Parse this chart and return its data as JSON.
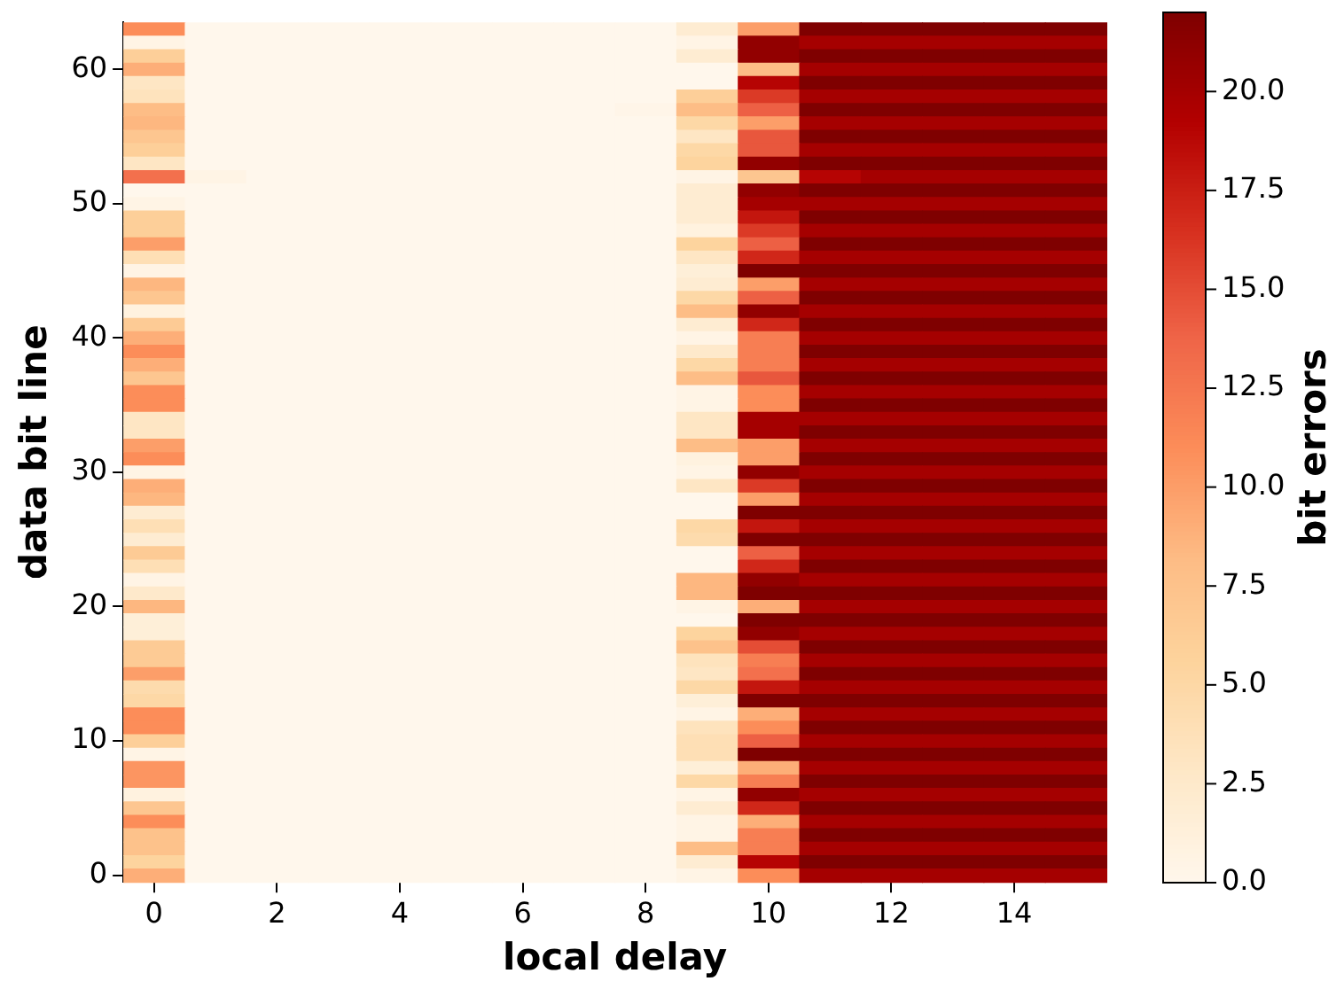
{
  "chart_data": {
    "type": "heatmap",
    "xlabel": "local delay",
    "ylabel": "data bit line",
    "clabel": "bit errors",
    "categories": [
      "0",
      null,
      "2",
      null,
      "4",
      null,
      "6",
      null,
      "8",
      null,
      "10",
      null,
      "12",
      null,
      "14",
      null
    ],
    "y_categories": [
      null,
      null,
      null,
      "60",
      null,
      null,
      null,
      null,
      null,
      null,
      null,
      null,
      null,
      "50",
      null,
      null,
      null,
      null,
      null,
      null,
      null,
      null,
      null,
      "40",
      null,
      null,
      null,
      null,
      null,
      null,
      null,
      null,
      null,
      "30",
      null,
      null,
      null,
      null,
      null,
      null,
      null,
      null,
      null,
      "20",
      null,
      null,
      null,
      null,
      null,
      null,
      null,
      null,
      null,
      "10",
      null,
      null,
      null,
      null,
      null,
      null,
      null,
      null,
      null,
      "0"
    ],
    "clim": [
      0,
      22
    ],
    "cticks": [
      {
        "value": 0,
        "label": "0.0"
      },
      {
        "value": 2.5,
        "label": "2.5"
      },
      {
        "value": 5,
        "label": "5.0"
      },
      {
        "value": 7.5,
        "label": "7.5"
      },
      {
        "value": 10,
        "label": "10.0"
      },
      {
        "value": 12.5,
        "label": "12.5"
      },
      {
        "value": 15,
        "label": "15.0"
      },
      {
        "value": 17.5,
        "label": "17.5"
      },
      {
        "value": 20,
        "label": "20.0"
      }
    ],
    "cells": [
      [
        11,
        0,
        0,
        0,
        0,
        0,
        0,
        0,
        0,
        2,
        10,
        22,
        22,
        22,
        22,
        22
      ],
      [
        0.5,
        0,
        0,
        0,
        0,
        0,
        0,
        0,
        0,
        0.5,
        21,
        20,
        20,
        20,
        20,
        20
      ],
      [
        6,
        0,
        0,
        0,
        0,
        0,
        0,
        0,
        0,
        2,
        21,
        22,
        22,
        22,
        22,
        22
      ],
      [
        9,
        0,
        0,
        0,
        0,
        0,
        0,
        0,
        0,
        0,
        8,
        20,
        20,
        20,
        20,
        20
      ],
      [
        3,
        0,
        0,
        0,
        0,
        0,
        0,
        0,
        0,
        0,
        19,
        22,
        22,
        22,
        22,
        22
      ],
      [
        3.5,
        0,
        0,
        0,
        0,
        0,
        0,
        0,
        0,
        6,
        16,
        20,
        20,
        20,
        20,
        20
      ],
      [
        8,
        0,
        0,
        0,
        0,
        0,
        0,
        0,
        0.3,
        8,
        14,
        22,
        22,
        22,
        22,
        22
      ],
      [
        8.5,
        0,
        0,
        0,
        0,
        0,
        0,
        0,
        0,
        5,
        10,
        20,
        20,
        20,
        20,
        20
      ],
      [
        7,
        0,
        0,
        0,
        0,
        0,
        0,
        0,
        0,
        3,
        14.5,
        22,
        22,
        22,
        22,
        22
      ],
      [
        6,
        0,
        0,
        0,
        0,
        0,
        0,
        0,
        0,
        5,
        14.5,
        20,
        20,
        20,
        20,
        20
      ],
      [
        3,
        0,
        0,
        0,
        0,
        0,
        0,
        0,
        0,
        5.5,
        21,
        22,
        22,
        22,
        22,
        22
      ],
      [
        13,
        0.5,
        0,
        0,
        0,
        0,
        0,
        0,
        0,
        0.5,
        7,
        19,
        20,
        20,
        20,
        20
      ],
      [
        0,
        0,
        0,
        0,
        0,
        0,
        0,
        0,
        0,
        2,
        21,
        22,
        22,
        22,
        22,
        22
      ],
      [
        0.5,
        0,
        0,
        0,
        0,
        0,
        0,
        0,
        0,
        2,
        20,
        20,
        20,
        20,
        20,
        20
      ],
      [
        6,
        0,
        0,
        0,
        0,
        0,
        0,
        0,
        0,
        2,
        18,
        22,
        22,
        22,
        22,
        22
      ],
      [
        6,
        0,
        0,
        0,
        0,
        0,
        0,
        0,
        0,
        1,
        16,
        20,
        20,
        20,
        20,
        20
      ],
      [
        10,
        0,
        0,
        0,
        0,
        0,
        0,
        0,
        0,
        5.5,
        14,
        22,
        22,
        22,
        22,
        22
      ],
      [
        4,
        0,
        0,
        0,
        0,
        0,
        0,
        0,
        0,
        3,
        17,
        20,
        20,
        20,
        20,
        20
      ],
      [
        0.5,
        0,
        0,
        0,
        0,
        0,
        0,
        0,
        0,
        1.5,
        22,
        22,
        22,
        22,
        22,
        22
      ],
      [
        8.5,
        0,
        0,
        0,
        0,
        0,
        0,
        0,
        0,
        2,
        10,
        20,
        20,
        20,
        20,
        20
      ],
      [
        7,
        0,
        0,
        0,
        0,
        0,
        0,
        0,
        0,
        5,
        14,
        22,
        22,
        22,
        22,
        22
      ],
      [
        1,
        0,
        0,
        0,
        0,
        0,
        0,
        0,
        0,
        8,
        21,
        20,
        20,
        20,
        20,
        20
      ],
      [
        6.5,
        0,
        0,
        0,
        0,
        0,
        0,
        0,
        0,
        2,
        17,
        22,
        22,
        22,
        22,
        22
      ],
      [
        9,
        0,
        0,
        0,
        0,
        0,
        0,
        0,
        0,
        0.5,
        12,
        20,
        20,
        20,
        20,
        20
      ],
      [
        11,
        0,
        0,
        0,
        0,
        0,
        0,
        0,
        0,
        2.5,
        12,
        22,
        22,
        22,
        22,
        22
      ],
      [
        9,
        0,
        0,
        0,
        0,
        0,
        0,
        0,
        0,
        5,
        12,
        20,
        20,
        20,
        20,
        20
      ],
      [
        7,
        0,
        0,
        0,
        0,
        0,
        0,
        0,
        0,
        8,
        14.5,
        22,
        22,
        22,
        22,
        22
      ],
      [
        11,
        0,
        0,
        0,
        0,
        0,
        0,
        0,
        0,
        0.5,
        11,
        20,
        20,
        20,
        20,
        20
      ],
      [
        11,
        0,
        0,
        0,
        0,
        0,
        0,
        0,
        0,
        0.5,
        11,
        22,
        22,
        22,
        22,
        22
      ],
      [
        3,
        0,
        0,
        0,
        0,
        0,
        0,
        0,
        0,
        3,
        20,
        20,
        20,
        20,
        20,
        20
      ],
      [
        3,
        0,
        0,
        0,
        0,
        0,
        0,
        0,
        0,
        3,
        20,
        22,
        22,
        22,
        22,
        22
      ],
      [
        10,
        0,
        0,
        0,
        0,
        0,
        0,
        0,
        0,
        8,
        10,
        20,
        20,
        20,
        20,
        20
      ],
      [
        11,
        0,
        0,
        0,
        0,
        0,
        0,
        0,
        0,
        1,
        10,
        22,
        22,
        22,
        22,
        22
      ],
      [
        0.5,
        0,
        0,
        0,
        0,
        0,
        0,
        0,
        0,
        0.5,
        21,
        20,
        20,
        20,
        20,
        20
      ],
      [
        9,
        0,
        0,
        0,
        0,
        0,
        0,
        0,
        0,
        3,
        16,
        22,
        22,
        22,
        22,
        22
      ],
      [
        8.5,
        0,
        0,
        0,
        0,
        0,
        0,
        0,
        0,
        0,
        10,
        20,
        20,
        20,
        20,
        20
      ],
      [
        2,
        0,
        0,
        0,
        0,
        0,
        0,
        0,
        0,
        0,
        22,
        22,
        22,
        22,
        22,
        22
      ],
      [
        4,
        0,
        0,
        0,
        0,
        0,
        0,
        0,
        0,
        5,
        18,
        20,
        20,
        20,
        20,
        20
      ],
      [
        2,
        0,
        0,
        0,
        0,
        0,
        0,
        0,
        0,
        4.5,
        22,
        22,
        22,
        22,
        22,
        22
      ],
      [
        6.5,
        0,
        0,
        0,
        0,
        0,
        0,
        0,
        0,
        0,
        14,
        20,
        20,
        20,
        20,
        20
      ],
      [
        4,
        0,
        0,
        0,
        0,
        0,
        0,
        0,
        0,
        0,
        17,
        22,
        22,
        22,
        22,
        22
      ],
      [
        0.5,
        0,
        0,
        0,
        0,
        0,
        0,
        0,
        0,
        8.5,
        21,
        20,
        20,
        20,
        20,
        20
      ],
      [
        2.5,
        0,
        0,
        0,
        0,
        0,
        0,
        0,
        0,
        8.5,
        22,
        22,
        22,
        22,
        22,
        22
      ],
      [
        8.5,
        0,
        0,
        0,
        0,
        0,
        0,
        0,
        0,
        0.5,
        9,
        20,
        20,
        20,
        20,
        20
      ],
      [
        1.5,
        0,
        0,
        0,
        0,
        0,
        0,
        0,
        0,
        0,
        22,
        22,
        22,
        22,
        22,
        22
      ],
      [
        1.5,
        0,
        0,
        0,
        0,
        0,
        0,
        0,
        0,
        5.5,
        21,
        20,
        20,
        20,
        20,
        20
      ],
      [
        6.5,
        0,
        0,
        0,
        0,
        0,
        0,
        0,
        0,
        7.5,
        15,
        22,
        22,
        22,
        22,
        22
      ],
      [
        6.5,
        0,
        0,
        0,
        0,
        0,
        0,
        0,
        0,
        3.5,
        12,
        20,
        20,
        20,
        20,
        20
      ],
      [
        10,
        0,
        0,
        0,
        0,
        0,
        0,
        0,
        0,
        3,
        13,
        22,
        22,
        22,
        22,
        22
      ],
      [
        4.5,
        0,
        0,
        0,
        0,
        0,
        0,
        0,
        0,
        5,
        18,
        20,
        20,
        20,
        20,
        20
      ],
      [
        5,
        0,
        0,
        0,
        0,
        0,
        0,
        0,
        0,
        1.5,
        22,
        22,
        22,
        22,
        22,
        22
      ],
      [
        11,
        0,
        0,
        0,
        0,
        0,
        0,
        0,
        0,
        0.5,
        9,
        20,
        20,
        20,
        20,
        20
      ],
      [
        11,
        0,
        0,
        0,
        0,
        0,
        0,
        0,
        0,
        3.5,
        11,
        22,
        22,
        22,
        22,
        22
      ],
      [
        6,
        0,
        0,
        0,
        0,
        0,
        0,
        0,
        0,
        4,
        14,
        20,
        20,
        20,
        20,
        20
      ],
      [
        0.5,
        0,
        0,
        0,
        0,
        0,
        0,
        0,
        0,
        4,
        22,
        22,
        22,
        22,
        22,
        22
      ],
      [
        10.5,
        0,
        0,
        0,
        0,
        0,
        0,
        0,
        0,
        1.5,
        9,
        20,
        20,
        20,
        20,
        20
      ],
      [
        10.5,
        0,
        0,
        0,
        0,
        0,
        0,
        0,
        0,
        5,
        12,
        22,
        22,
        22,
        22,
        22
      ],
      [
        1,
        0,
        0,
        0,
        0,
        0,
        0,
        0,
        0,
        0.5,
        21,
        20,
        20,
        20,
        20,
        20
      ],
      [
        7,
        0,
        0,
        0,
        0,
        0,
        0,
        0,
        0,
        2,
        17,
        22,
        22,
        22,
        22,
        22
      ],
      [
        11,
        0,
        0,
        0,
        0,
        0,
        0,
        0,
        0,
        0.5,
        9,
        20,
        20,
        20,
        20,
        20
      ],
      [
        7.5,
        0,
        0,
        0,
        0,
        0,
        0,
        0,
        0,
        0.5,
        12,
        22,
        22,
        22,
        22,
        22
      ],
      [
        7.5,
        0,
        0,
        0,
        0,
        0,
        0,
        0,
        0,
        8,
        12,
        20,
        20,
        20,
        20,
        20
      ],
      [
        5.5,
        0,
        0,
        0,
        0,
        0,
        0,
        0,
        0,
        2,
        19,
        22,
        22,
        22,
        22,
        22
      ],
      [
        9,
        0,
        0,
        0,
        0,
        0,
        0,
        0,
        0,
        0.5,
        11,
        20,
        20,
        20,
        20,
        20
      ]
    ]
  }
}
